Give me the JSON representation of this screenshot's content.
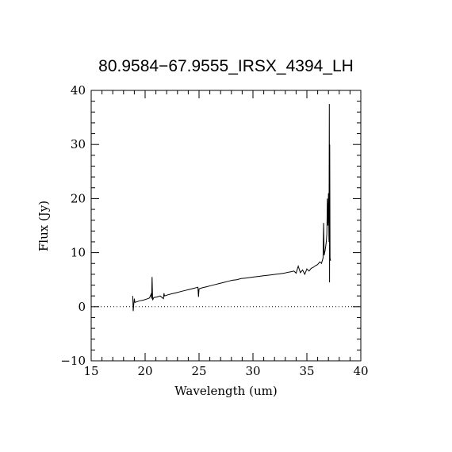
{
  "chart_data": {
    "type": "line",
    "title": "80.9584−67.9555_IRSX_4394_LH",
    "xlabel": "Wavelength (um)",
    "ylabel": "Flux (Jy)",
    "xlim": [
      15,
      40
    ],
    "ylim": [
      -10,
      40
    ],
    "x_ticks": [
      15,
      20,
      25,
      30,
      35,
      40
    ],
    "y_ticks": [
      -10,
      0,
      10,
      20,
      30,
      40
    ],
    "x_tick_labels": [
      "15",
      "20",
      "25",
      "30",
      "35",
      "40"
    ],
    "y_tick_labels": [
      "−10",
      "0",
      "10",
      "20",
      "30",
      "40"
    ],
    "reference_line": {
      "y": 0,
      "style": "dotted"
    },
    "grid": false,
    "series": [
      {
        "x": [
          18.85,
          18.9,
          18.95,
          19.0,
          19.05,
          19.2,
          19.5,
          19.8,
          20.1,
          20.4,
          20.55,
          20.6,
          20.65,
          20.7,
          20.8,
          21.1,
          21.4,
          21.7,
          21.75,
          21.8,
          22.1,
          22.5,
          22.9,
          23.3,
          23.7,
          24.1,
          24.5,
          24.9,
          24.95,
          25.0,
          25.3,
          25.7,
          26.1,
          26.5,
          26.9,
          27.3,
          27.7,
          28.1,
          28.5,
          28.9,
          29.3,
          29.7,
          30.1,
          30.5,
          30.9,
          31.3,
          31.7,
          32.1,
          32.5,
          32.9,
          33.3,
          33.6,
          33.8,
          34.0,
          34.2,
          34.4,
          34.6,
          34.8,
          35.0,
          35.2,
          35.4,
          35.6,
          35.8,
          36.0,
          36.2,
          36.35,
          36.5,
          36.55,
          36.6,
          36.7,
          36.8,
          36.85,
          36.9,
          36.95,
          37.0,
          37.05,
          37.08,
          37.1,
          37.12,
          37.15,
          37.2
        ],
        "y": [
          2.0,
          -0.8,
          0.5,
          1.5,
          0.8,
          0.9,
          1.1,
          1.2,
          1.4,
          1.6,
          2.3,
          1.5,
          5.5,
          1.2,
          1.7,
          1.8,
          2.0,
          1.5,
          2.5,
          2.0,
          2.2,
          2.4,
          2.6,
          2.8,
          3.0,
          3.2,
          3.4,
          3.6,
          1.8,
          3.3,
          3.5,
          3.7,
          3.9,
          4.1,
          4.3,
          4.5,
          4.7,
          4.9,
          5.0,
          5.2,
          5.3,
          5.4,
          5.5,
          5.6,
          5.7,
          5.8,
          5.9,
          6.0,
          6.1,
          6.2,
          6.4,
          6.5,
          6.6,
          6.2,
          7.5,
          6.3,
          6.8,
          6.0,
          7.0,
          6.6,
          7.1,
          7.3,
          7.6,
          7.8,
          8.3,
          8.0,
          9.0,
          15.5,
          9.5,
          10.5,
          12.0,
          13.5,
          20.0,
          15.0,
          21.0,
          12.0,
          37.5,
          4.5,
          30.0,
          9.0,
          8.5
        ]
      }
    ]
  }
}
